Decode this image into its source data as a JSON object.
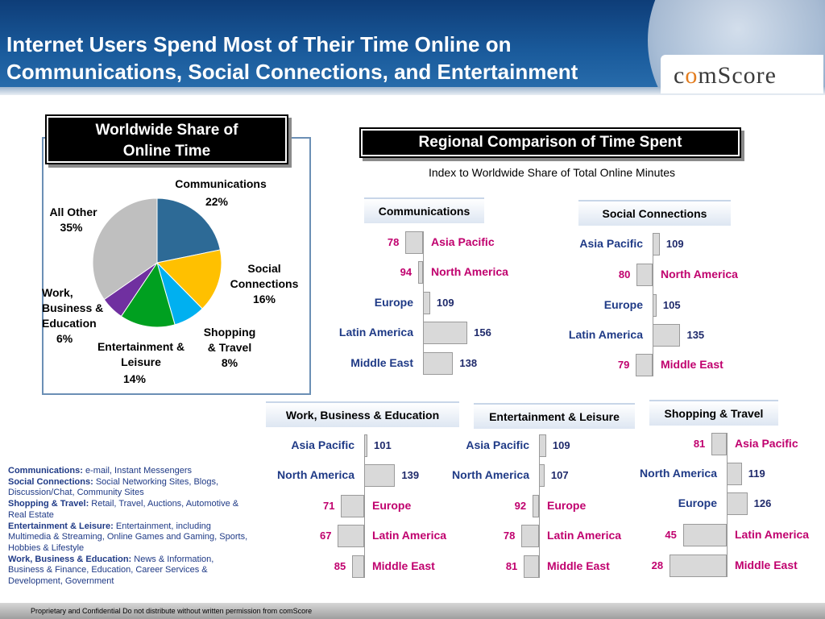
{
  "header": {
    "title_line1": "Internet Users Spend Most of Their Time  Online on",
    "title_line2": "Communications, Social Connections, and Entertainment",
    "logo_pre": "c",
    "logo_o": "o",
    "logo_post": "mScore"
  },
  "pie_section": {
    "heading_line1": "Worldwide Share of",
    "heading_line2": "Online Time"
  },
  "regional_section": {
    "heading": "Regional Comparison of Time Spent",
    "subtitle": "Index to Worldwide Share of Total Online Minutes"
  },
  "colors": {
    "communications": "#2d6a96",
    "social": "#ffc000",
    "shopping": "#00b0f0",
    "entertainment": "#00a020",
    "work": "#7030a0",
    "other": "#bfbfbf",
    "above": "#1f2a6b",
    "below": "#c0006e"
  },
  "chart_data": [
    {
      "type": "pie",
      "title": "Worldwide Share of Online Time",
      "slices": [
        {
          "name": "Communications",
          "value": 22,
          "label": "22%",
          "color": "#2d6a96"
        },
        {
          "name": "Social Connections",
          "value": 16,
          "label": "16%",
          "color": "#ffc000"
        },
        {
          "name": "Shopping & Travel",
          "value": 8,
          "label": "8%",
          "color": "#00b0f0"
        },
        {
          "name": "Entertainment & Leisure",
          "value": 14,
          "label": "14%",
          "color": "#00a020"
        },
        {
          "name": "Work, Business & Education",
          "value": 6,
          "label": "6%",
          "color": "#7030a0"
        },
        {
          "name": "All Other",
          "value": 35,
          "label": "35%",
          "color": "#bfbfbf"
        }
      ]
    },
    {
      "type": "bar",
      "title": "Communications",
      "baseline": 100,
      "categories": [
        "Asia Pacific",
        "North America",
        "Europe",
        "Latin America",
        "Middle East"
      ],
      "values": [
        78,
        94,
        109,
        156,
        138
      ]
    },
    {
      "type": "bar",
      "title": "Social Connections",
      "baseline": 100,
      "categories": [
        "Asia Pacific",
        "North America",
        "Europe",
        "Latin America",
        "Middle East"
      ],
      "values": [
        109,
        80,
        105,
        135,
        79
      ]
    },
    {
      "type": "bar",
      "title": "Work, Business & Education",
      "baseline": 100,
      "categories": [
        "Asia Pacific",
        "North America",
        "Europe",
        "Latin America",
        "Middle East"
      ],
      "values": [
        101,
        139,
        71,
        67,
        85
      ]
    },
    {
      "type": "bar",
      "title": "Entertainment & Leisure",
      "baseline": 100,
      "categories": [
        "Asia Pacific",
        "North America",
        "Europe",
        "Latin America",
        "Middle East"
      ],
      "values": [
        109,
        107,
        92,
        78,
        81
      ]
    },
    {
      "type": "bar",
      "title": "Shopping & Travel",
      "baseline": 100,
      "categories": [
        "Asia Pacific",
        "North America",
        "Europe",
        "Latin America",
        "Middle East"
      ],
      "values": [
        81,
        119,
        126,
        45,
        28
      ]
    }
  ],
  "legend": [
    {
      "term": "Communications:",
      "desc": "e-mail, Instant Messengers"
    },
    {
      "term": "Social Connections:",
      "desc": "Social Networking Sites, Blogs, Discussion/Chat, Community Sites"
    },
    {
      "term": "Shopping & Travel:",
      "desc": "Retail, Travel, Auctions, Automotive & Real Estate"
    },
    {
      "term": "Entertainment & Leisure:",
      "desc": "Entertainment, including Multimedia & Streaming, Online Games and Gaming, Sports, Hobbies & Lifestyle"
    },
    {
      "term": "Work, Business & Education:",
      "desc": "News & Information, Business & Finance, Education, Career Services & Development, Government"
    }
  ],
  "footer": {
    "text": "Proprietary and Confidential Do not distribute without written permission from comScore"
  }
}
